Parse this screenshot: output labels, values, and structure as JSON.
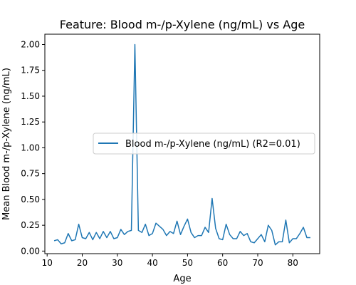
{
  "chart_data": {
    "type": "line",
    "title": "Feature: Blood m-/p-Xylene (ng/mL) vs Age",
    "xlabel": "Age",
    "ylabel": "Mean Blood m-/p-Xylene (ng/mL)",
    "xlim": [
      9.35,
      87.65
    ],
    "ylim": [
      -0.025,
      2.1
    ],
    "xticks": [
      10,
      20,
      30,
      40,
      50,
      60,
      70,
      80
    ],
    "yticks": [
      0.0,
      0.25,
      0.5,
      0.75,
      1.0,
      1.25,
      1.5,
      1.75,
      2.0
    ],
    "ytick_labels": [
      "0.00",
      "0.25",
      "0.50",
      "0.75",
      "1.00",
      "1.25",
      "1.50",
      "1.75",
      "2.00"
    ],
    "grid": false,
    "legend_position": "center-right",
    "series": [
      {
        "name": "Blood m-/p-Xylene (ng/mL) (R2=0.01)",
        "color": "#1f77b4",
        "x": [
          12,
          13,
          14,
          15,
          16,
          17,
          18,
          19,
          20,
          21,
          22,
          23,
          24,
          25,
          26,
          27,
          28,
          29,
          30,
          31,
          32,
          33,
          34,
          35,
          36,
          37,
          38,
          39,
          40,
          41,
          42,
          43,
          44,
          45,
          46,
          47,
          48,
          49,
          50,
          51,
          52,
          53,
          54,
          55,
          56,
          57,
          58,
          59,
          60,
          61,
          62,
          63,
          64,
          65,
          66,
          67,
          68,
          69,
          70,
          71,
          72,
          73,
          74,
          75,
          76,
          77,
          78,
          79,
          80,
          81,
          82,
          83,
          84,
          85
        ],
        "y": [
          0.1,
          0.11,
          0.07,
          0.08,
          0.17,
          0.1,
          0.11,
          0.26,
          0.13,
          0.12,
          0.18,
          0.11,
          0.18,
          0.12,
          0.19,
          0.13,
          0.19,
          0.12,
          0.13,
          0.21,
          0.16,
          0.19,
          0.2,
          2.0,
          0.2,
          0.18,
          0.26,
          0.15,
          0.17,
          0.27,
          0.24,
          0.21,
          0.15,
          0.19,
          0.17,
          0.29,
          0.16,
          0.24,
          0.31,
          0.18,
          0.13,
          0.15,
          0.15,
          0.23,
          0.18,
          0.51,
          0.22,
          0.12,
          0.11,
          0.26,
          0.16,
          0.12,
          0.12,
          0.19,
          0.15,
          0.17,
          0.09,
          0.08,
          0.12,
          0.16,
          0.09,
          0.25,
          0.2,
          0.06,
          0.09,
          0.09,
          0.3,
          0.08,
          0.12,
          0.12,
          0.17,
          0.23,
          0.13,
          0.13
        ]
      }
    ]
  }
}
